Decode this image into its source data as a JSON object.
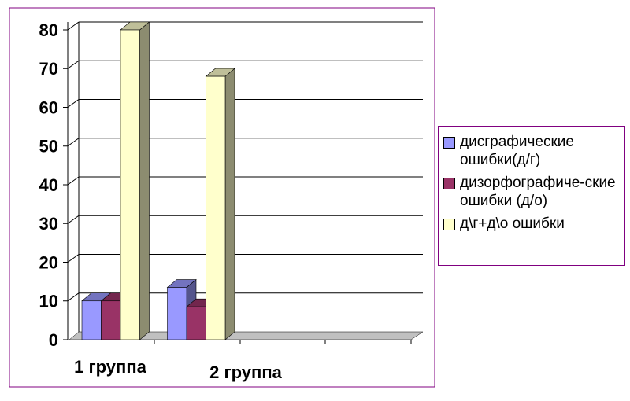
{
  "chart_data": {
    "type": "bar3d",
    "categories": [
      "1 группа",
      "2 группа",
      null,
      null
    ],
    "series": [
      {
        "name": "дисграфические ошибки(д/г)",
        "color": "#9999ff",
        "values": [
          10,
          13.5,
          null,
          null
        ]
      },
      {
        "name": "дизорфографиче-ские ошибки (д/о)",
        "color": "#993366",
        "values": [
          10,
          8.5,
          null,
          null
        ]
      },
      {
        "name": "д\\г+д\\о ошибки",
        "color": "#ffffcc",
        "values": [
          80,
          68,
          null,
          null
        ]
      }
    ],
    "ylim": [
      0,
      80
    ],
    "yticks": [
      0,
      10,
      20,
      30,
      40,
      50,
      60,
      70,
      80
    ],
    "grid": true,
    "legend": "right"
  }
}
